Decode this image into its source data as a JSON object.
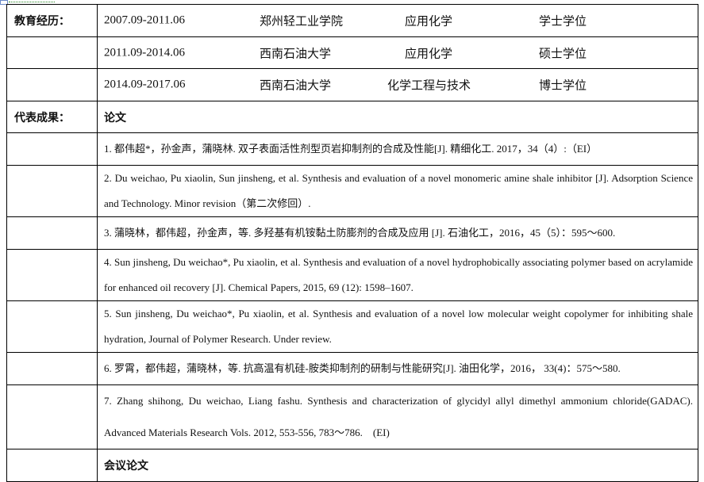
{
  "education": {
    "label": "教育经历：",
    "rows": [
      {
        "period": "2007.09-2011.06",
        "school": "郑州轻工业学院",
        "major": "应用化学",
        "degree": "学士学位"
      },
      {
        "period": "2011.09-2014.06",
        "school": "西南石油大学",
        "major": "应用化学",
        "degree": "硕士学位"
      },
      {
        "period": "2014.09-2017.06",
        "school": "西南石油大学",
        "major": "化学工程与技术",
        "degree": "博士学位"
      }
    ]
  },
  "achievements": {
    "label": "代表成果：",
    "papers_heading": "论文",
    "papers": [
      "1. 都伟超*，孙金声，蒲晓林. 双子表面活性剂型页岩抑制剂的合成及性能[J]. 精细化工. 2017，34（4）:（EI）",
      "2. Du weichao, Pu xiaolin, Sun jinsheng, et al. Synthesis and evaluation of a novel monomeric amine shale inhibitor [J]. Adsorption Science and Technology. Minor revision（第二次修回）.",
      "3. 蒲晓林，都伟超，孙金声，等. 多羟基有机铵黏土防膨剂的合成及应用 [J]. 石油化工，2016，45（5）：595～600.",
      "4. Sun jinsheng, Du weichao*, Pu xiaolin, et al. Synthesis and evaluation of a novel hydrophobically associating polymer based on acrylamide for enhanced oil recovery [J]. Chemical Papers, 2015, 69 (12): 1598–1607.",
      "5. Sun jinsheng, Du weichao*, Pu xiaolin, et al. Synthesis and evaluation of a novel low molecular weight copolymer for inhibiting shale hydration, Journal of Polymer Research. Under review.",
      "6. 罗霄，都伟超，蒲晓林，等. 抗高温有机硅-胺类抑制剂的研制与性能研究[J]. 油田化学，2016， 33(4)：575～580.",
      "7. Zhang shihong, Du weichao, Liang fashu. Synthesis and characterization of glycidyl allyl dimethyl ammonium chloride(GADAC). Advanced Materials Research Vols. 2012, 553-556, 783～786.　(EI)"
    ],
    "conference_heading": "会议论文"
  }
}
